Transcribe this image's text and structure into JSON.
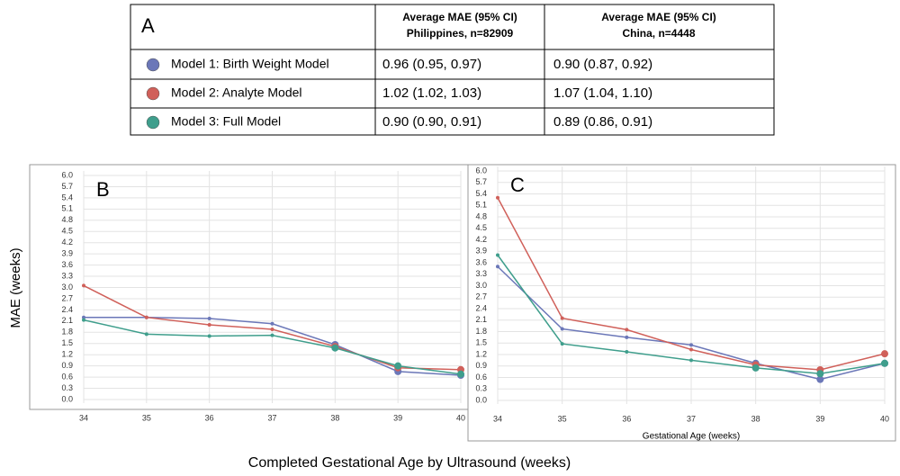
{
  "table": {
    "label": "A",
    "columns": [
      {
        "title": "Average MAE (95% CI)",
        "subtitle": "Philippines, n=82909"
      },
      {
        "title": "Average MAE (95% CI)",
        "subtitle": "China, n=4448"
      }
    ],
    "rows": [
      {
        "color": "#6b77b8",
        "cells": [
          "Model 1: Birth Weight Model",
          "0.96 (0.95, 0.97)",
          "0.90 (0.87, 0.92)"
        ]
      },
      {
        "color": "#d0605a",
        "cells": [
          "Model 2: Analyte Model",
          "1.02 (1.02, 1.03)",
          "1.07 (1.04, 1.10)"
        ]
      },
      {
        "color": "#3f9e8c",
        "cells": [
          "Model 3: Full Model",
          "0.90 (0.90, 0.91)",
          "0.89 (0.86, 0.91)"
        ]
      }
    ]
  },
  "chart_data": [
    {
      "type": "line",
      "title": "B",
      "ylabel": "MAE (weeks)",
      "xlabel": "Completed Gestational Age by Ultrasound (weeks)",
      "x": [
        34,
        35,
        36,
        37,
        38,
        39,
        40
      ],
      "xlim": [
        34,
        40
      ],
      "xticks": [
        34,
        35,
        36,
        37,
        38,
        39,
        40
      ],
      "ylim": [
        0,
        6
      ],
      "yticks": [
        {
          "value": 0,
          "label": "0.0"
        },
        0.3,
        0.6,
        0.9,
        1.2,
        1.5,
        1.8,
        2.1,
        2.4,
        2.7,
        {
          "value": 3,
          "label": "3.0"
        },
        3.3,
        3.6,
        3.9,
        4.2,
        4.5,
        4.8,
        5.1,
        5.4,
        5.7,
        {
          "value": 6,
          "label": "6.0"
        }
      ],
      "grid": true,
      "series": [
        {
          "name": "Model 1: Birth Weight Model",
          "color": "#6b77b8",
          "values": [
            2.2,
            2.2,
            2.17,
            2.03,
            1.47,
            0.75,
            0.65
          ]
        },
        {
          "name": "Model 2: Analyte Model",
          "color": "#d0605a",
          "values": [
            3.05,
            2.2,
            2.0,
            1.88,
            1.42,
            0.85,
            0.8
          ]
        },
        {
          "name": "Model 3: Full Model",
          "color": "#3f9e8c",
          "values": [
            2.13,
            1.75,
            1.7,
            1.72,
            1.38,
            0.9,
            0.68
          ]
        }
      ]
    },
    {
      "type": "line",
      "title": "C",
      "xlabel": "Gestational Age (weeks)",
      "x": [
        34,
        35,
        36,
        37,
        38,
        39,
        40
      ],
      "xlim": [
        34,
        40
      ],
      "xticks": [
        34,
        35,
        36,
        37,
        38,
        39,
        40
      ],
      "ylim": [
        0,
        6
      ],
      "yticks": [
        {
          "value": 0,
          "label": "0.0"
        },
        0.3,
        0.6,
        0.9,
        1.2,
        1.5,
        1.8,
        2.1,
        2.4,
        2.7,
        {
          "value": 3,
          "label": "3.0"
        },
        3.3,
        3.6,
        3.9,
        4.2,
        4.5,
        4.8,
        5.1,
        5.4,
        5.7,
        {
          "value": 6,
          "label": "6.0"
        }
      ],
      "grid": true,
      "series": [
        {
          "name": "Model 1: Birth Weight Model",
          "color": "#6b77b8",
          "values": [
            3.5,
            1.87,
            1.65,
            1.45,
            0.97,
            0.55,
            0.97
          ]
        },
        {
          "name": "Model 2: Analyte Model",
          "color": "#d0605a",
          "values": [
            5.3,
            2.15,
            1.85,
            1.33,
            0.93,
            0.8,
            1.22
          ]
        },
        {
          "name": "Model 3: Full Model",
          "color": "#3f9e8c",
          "values": [
            3.8,
            1.48,
            1.27,
            1.05,
            0.85,
            0.7,
            0.97
          ]
        }
      ]
    }
  ]
}
